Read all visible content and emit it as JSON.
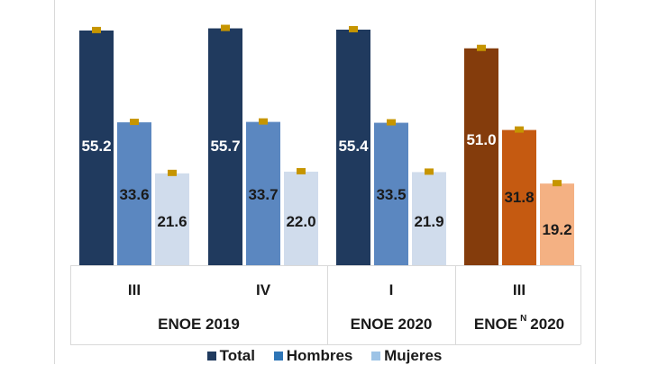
{
  "chart_data": {
    "type": "bar",
    "title": "",
    "xlabel": "",
    "ylabel": "",
    "ylim": [
      0,
      60
    ],
    "grid": false,
    "legend_position": "bottom",
    "categories": [
      {
        "label": "III",
        "group": "ENOE 2019",
        "palette": "blue"
      },
      {
        "label": "IV",
        "group": "ENOE 2019",
        "palette": "blue"
      },
      {
        "label": "I",
        "group": "ENOE 2020",
        "palette": "blue"
      },
      {
        "label": "III",
        "group": "ENOE^N 2020",
        "palette": "orange"
      }
    ],
    "groups": [
      {
        "name": "ENOE 2019",
        "base": "ENOE",
        "superscript": "",
        "year": "2019",
        "span": [
          0,
          1
        ]
      },
      {
        "name": "ENOE 2020",
        "base": "ENOE",
        "superscript": "",
        "year": "2020",
        "span": [
          2,
          2
        ]
      },
      {
        "name": "ENOE^N 2020",
        "base": "ENOE",
        "superscript": "N",
        "year": "2020",
        "span": [
          3,
          3
        ]
      }
    ],
    "series": [
      {
        "name": "Total",
        "values": [
          55.2,
          55.7,
          55.4,
          51.0
        ]
      },
      {
        "name": "Hombres",
        "values": [
          33.6,
          33.7,
          33.5,
          31.8
        ]
      },
      {
        "name": "Mujeres",
        "values": [
          21.6,
          22.0,
          21.9,
          19.2
        ]
      }
    ],
    "error_markers": true
  },
  "colors": {
    "blue": [
      "#203a5e",
      "#5b87c0",
      "#d0dcec"
    ],
    "orange": [
      "#843c0c",
      "#c55a11",
      "#f4b183"
    ],
    "legend": [
      "#203a5e",
      "#2e75b6",
      "#9dc3e6"
    ],
    "error_marker": "#c69500",
    "label_light": "#ffffff",
    "label_dark": "#1a1a1a"
  },
  "legend": [
    {
      "label": "Total"
    },
    {
      "label": "Hombres"
    },
    {
      "label": "Mujeres"
    }
  ]
}
